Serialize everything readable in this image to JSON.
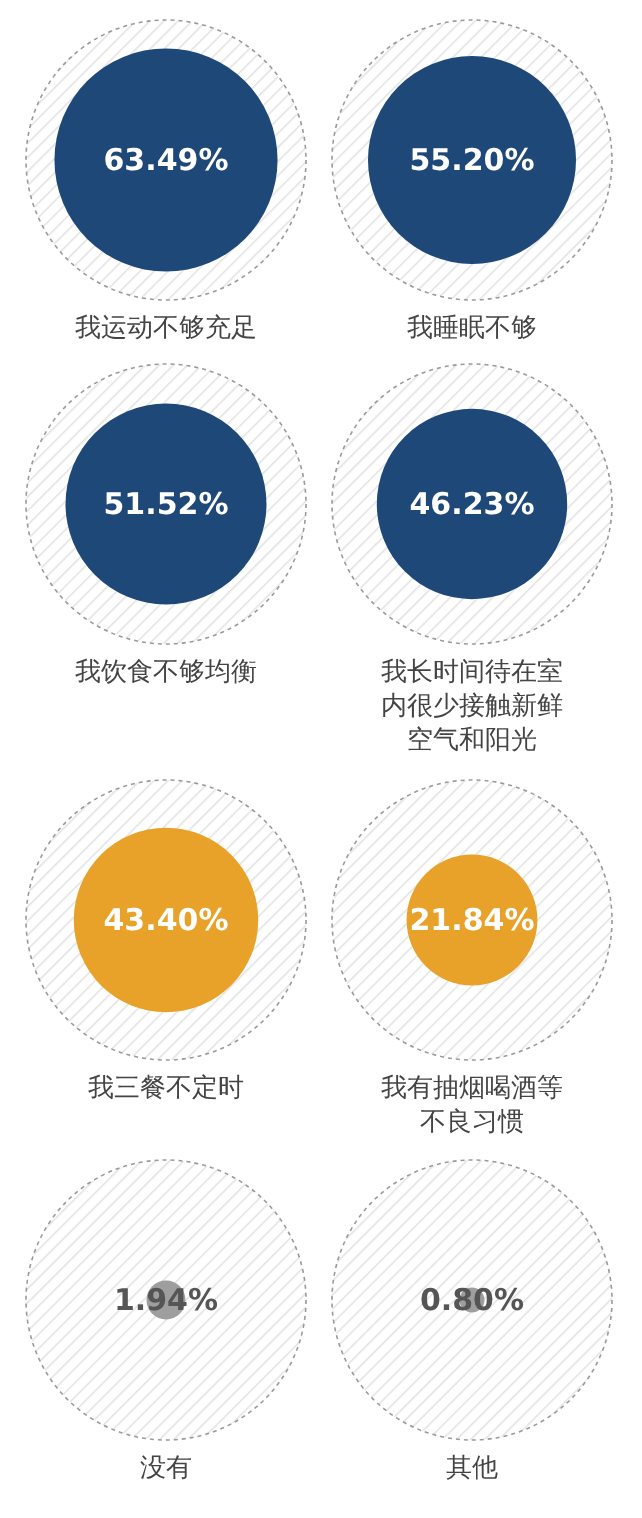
{
  "chart_data": {
    "type": "other",
    "categories": [
      "我运动不够充足",
      "我睡眠不够",
      "我饮食不够均衡",
      "我长时间待在室内很少接触新鲜空气和阳光",
      "我三餐不定时",
      "我有抽烟喝酒等不良习惯",
      "没有",
      "其他"
    ],
    "values": [
      63.49,
      55.2,
      51.52,
      46.23,
      43.4,
      21.84,
      1.94,
      0.8
    ],
    "colors": [
      "#1e4878",
      "#1e4878",
      "#1e4878",
      "#1e4878",
      "#e8a229",
      "#e8a229",
      "#9e9e9e",
      "#9e9e9e"
    ],
    "value_labels": [
      "63.49%",
      "55.20%",
      "51.52%",
      "46.23%",
      "43.40%",
      "21.84%",
      "1.94%",
      "0.80%"
    ]
  }
}
